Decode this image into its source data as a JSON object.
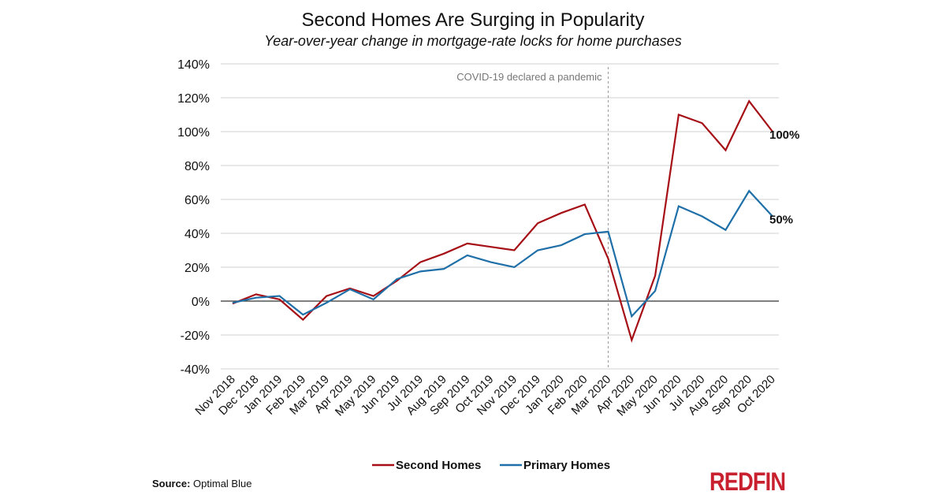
{
  "chart_data": {
    "type": "line",
    "title": "Second Homes Are Surging in Popularity",
    "subtitle": "Year-over-year change in mortgage-rate locks for home purchases",
    "categories": [
      "Nov 2018",
      "Dec 2018",
      "Jan 2019",
      "Feb 2019",
      "Mar 2019",
      "Apr 2019",
      "May 2019",
      "Jun 2019",
      "Jul 2019",
      "Aug 2019",
      "Sep 2019",
      "Oct 2019",
      "Nov 2019",
      "Dec 2019",
      "Jan 2020",
      "Feb 2020",
      "Mar 2020",
      "Apr 2020",
      "May 2020",
      "Jun 2020",
      "Jul 2020",
      "Aug 2020",
      "Sep 2020",
      "Oct 2020"
    ],
    "series": [
      {
        "name": "Second Homes",
        "color": "#a50f15",
        "values": [
          -1.5,
          4,
          1,
          -11,
          3,
          7.5,
          3,
          12,
          23,
          28,
          34,
          32,
          30,
          46,
          52,
          57,
          25,
          -23,
          15,
          110,
          105,
          89,
          118,
          100
        ],
        "end_label": "100%"
      },
      {
        "name": "Primary Homes",
        "color": "#1f6fa8",
        "values": [
          -1,
          2,
          3,
          -8,
          -1,
          7,
          1,
          13,
          17.5,
          19,
          27,
          23,
          20,
          30,
          33,
          39.5,
          41,
          -9,
          6,
          56,
          50,
          42,
          65,
          50
        ],
        "end_label": "50%"
      }
    ],
    "yticks": [
      "140%",
      "120%",
      "100%",
      "80%",
      "60%",
      "40%",
      "20%",
      "0%",
      "-20%",
      "-40%"
    ],
    "ytick_values": [
      140,
      120,
      100,
      80,
      60,
      40,
      20,
      0,
      -20,
      -40
    ],
    "ylim": [
      -40,
      140
    ],
    "grid": "horizontal",
    "legend": "bottom",
    "annotation": {
      "text": "COVID-19 declared a pandemic",
      "at": "Mar 2020"
    },
    "xlabel": "",
    "ylabel": ""
  },
  "footer": {
    "source_label": "Source:",
    "source_value": "Optimal Blue",
    "logo": "REDFIN"
  }
}
